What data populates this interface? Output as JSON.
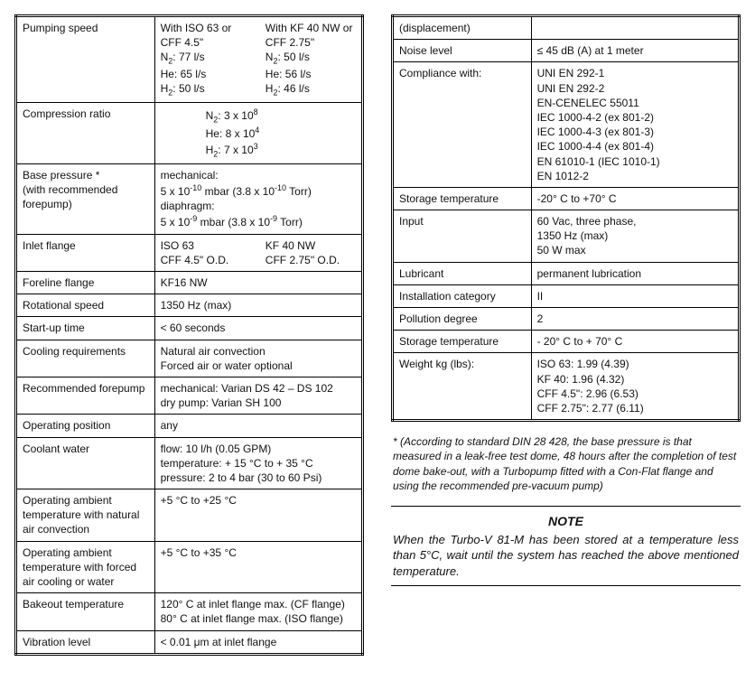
{
  "left": [
    {
      "label": "Pumping speed",
      "value_html": "<div class='subcols'><div>With ISO 63 or CFF 4.5\"<br>N<sub>2</sub>: 77 l/s<br>He: 65 l/s<br>H<sub>2</sub>: 50 l/s</div><div>With KF 40 NW or CFF 2.75\"<br>N<sub>2</sub>: 50 l/s<br>He: 56 l/s<br>H<sub>2</sub>: 46 l/s</div></div>"
    },
    {
      "label": "Compression ratio",
      "value_html": "<div style='margin-left:50px'>N<sub>2</sub>: 3 x 10<sup>8</sup><br>He: 8 x 10<sup>4</sup><br>H<sub>2</sub>: 7 x 10<sup>3</sup></div>"
    },
    {
      "label": "Base pressure *<br>(with recommended forepump)",
      "value_html": "mechanical:<br>5 x 10<sup>-10</sup> mbar (3.8 x 10<sup>-10</sup> Torr)<br>diaphragm:<br>5 x 10<sup>-9</sup> mbar (3.8 x 10<sup>-9</sup> Torr)"
    },
    {
      "label": "Inlet flange",
      "value_html": "<div class='subcols'><div>ISO 63<br>CFF 4.5\" O.D.</div><div>KF 40 NW<br>CFF 2.75\" O.D.</div></div>"
    },
    {
      "label": "Foreline flange",
      "value_html": "KF16 NW"
    },
    {
      "label": "Rotational speed",
      "value_html": "1350 Hz (max)"
    },
    {
      "label": "Start-up time",
      "value_html": "&lt; 60 seconds"
    },
    {
      "label": "Cooling requirements",
      "value_html": "Natural air convection<br>Forced air or water optional"
    },
    {
      "label": "Recommended forepump",
      "value_html": "mechanical: Varian DS 42 – DS 102<br>dry pump: Varian SH 100"
    },
    {
      "label": "Operating position",
      "value_html": "any"
    },
    {
      "label": "Coolant water",
      "value_html": "flow: 10 l/h (0.05 GPM)<br>temperature: + 15 °C to + 35 °C<br>pressure: 2 to 4 bar (30 to 60 Psi)"
    },
    {
      "label": "Operating ambient temperature with natural air convection",
      "value_html": "+5 °C to +25 °C"
    },
    {
      "label": "Operating ambient temperature with forced air cooling or water",
      "value_html": "+5 °C to +35 °C"
    },
    {
      "label": "Bakeout temperature",
      "value_html": "120° C at inlet flange max. (CF flange)<br>80° C at inlet flange max. (ISO flange)"
    },
    {
      "label": "Vibration level",
      "value_html": "&lt; 0.01 &mu;m at inlet flange"
    }
  ],
  "right": [
    {
      "label": "(displacement)",
      "value_html": ""
    },
    {
      "label": "Noise level",
      "value_html": "&le; 45 dB (A) at 1 meter"
    },
    {
      "label": "Compliance with:",
      "value_html": "UNI EN 292-1<br>UNI EN 292-2<br>EN-CENELEC 55011<br>IEC 1000-4-2 (ex 801-2)<br>IEC 1000-4-3 (ex 801-3)<br>IEC 1000-4-4 (ex 801-4)<br>EN 61010-1 (IEC 1010-1)<br>EN 1012-2"
    },
    {
      "label": "Storage temperature",
      "value_html": "-20° C to +70° C"
    },
    {
      "label": "Input",
      "value_html": "60 Vac, three phase,<br>1350 Hz (max)<br>50 W max"
    },
    {
      "label": "Lubricant",
      "value_html": "permanent lubrication"
    },
    {
      "label": "Installation category",
      "value_html": "II"
    },
    {
      "label": "Pollution degree",
      "value_html": "2"
    },
    {
      "label": "Storage temperature",
      "value_html": "- 20° C to + 70° C"
    },
    {
      "label": "Weight kg (lbs):",
      "value_html": "ISO 63: 1.99 (4.39)<br>KF 40: 1.96 (4.32)<br>CFF 4.5\": 2.96 (6.53)<br>CFF 2.75\": 2.77 (6.11)"
    }
  ],
  "footnote": "* (According to standard DIN 28 428, the base pressure is that measured in a leak-free test dome, 48 hours after the completion of test dome bake-out, with a Turbopump fitted with a Con-Flat flange and using the recommended pre-vacuum pump)",
  "note_title": "NOTE",
  "note_body": "When the Turbo-V 81-M has been stored at a temperature less than 5°C, wait until the system has reached the above mentioned temperature."
}
